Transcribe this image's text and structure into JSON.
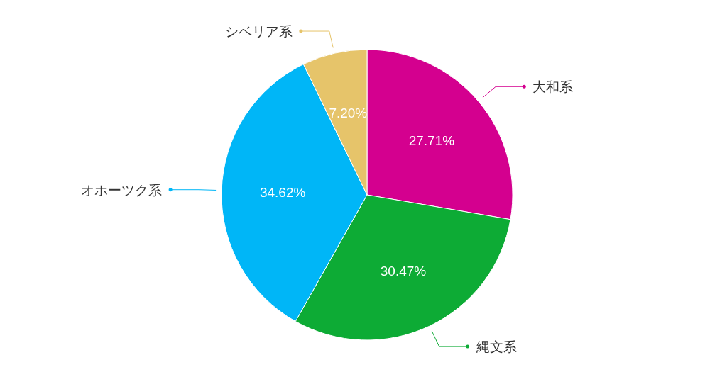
{
  "chart_data": {
    "type": "pie",
    "categories": [
      "大和系",
      "縄文系",
      "オホーツク系",
      "シベリア系"
    ],
    "values": [
      27.71,
      30.47,
      34.62,
      7.2
    ],
    "colors": [
      "#d4008f",
      "#0dab35",
      "#00b6f7",
      "#e6c46a"
    ],
    "value_labels": [
      "27.71%",
      "30.47%",
      "34.62%",
      "7.20%"
    ],
    "legend": false
  }
}
